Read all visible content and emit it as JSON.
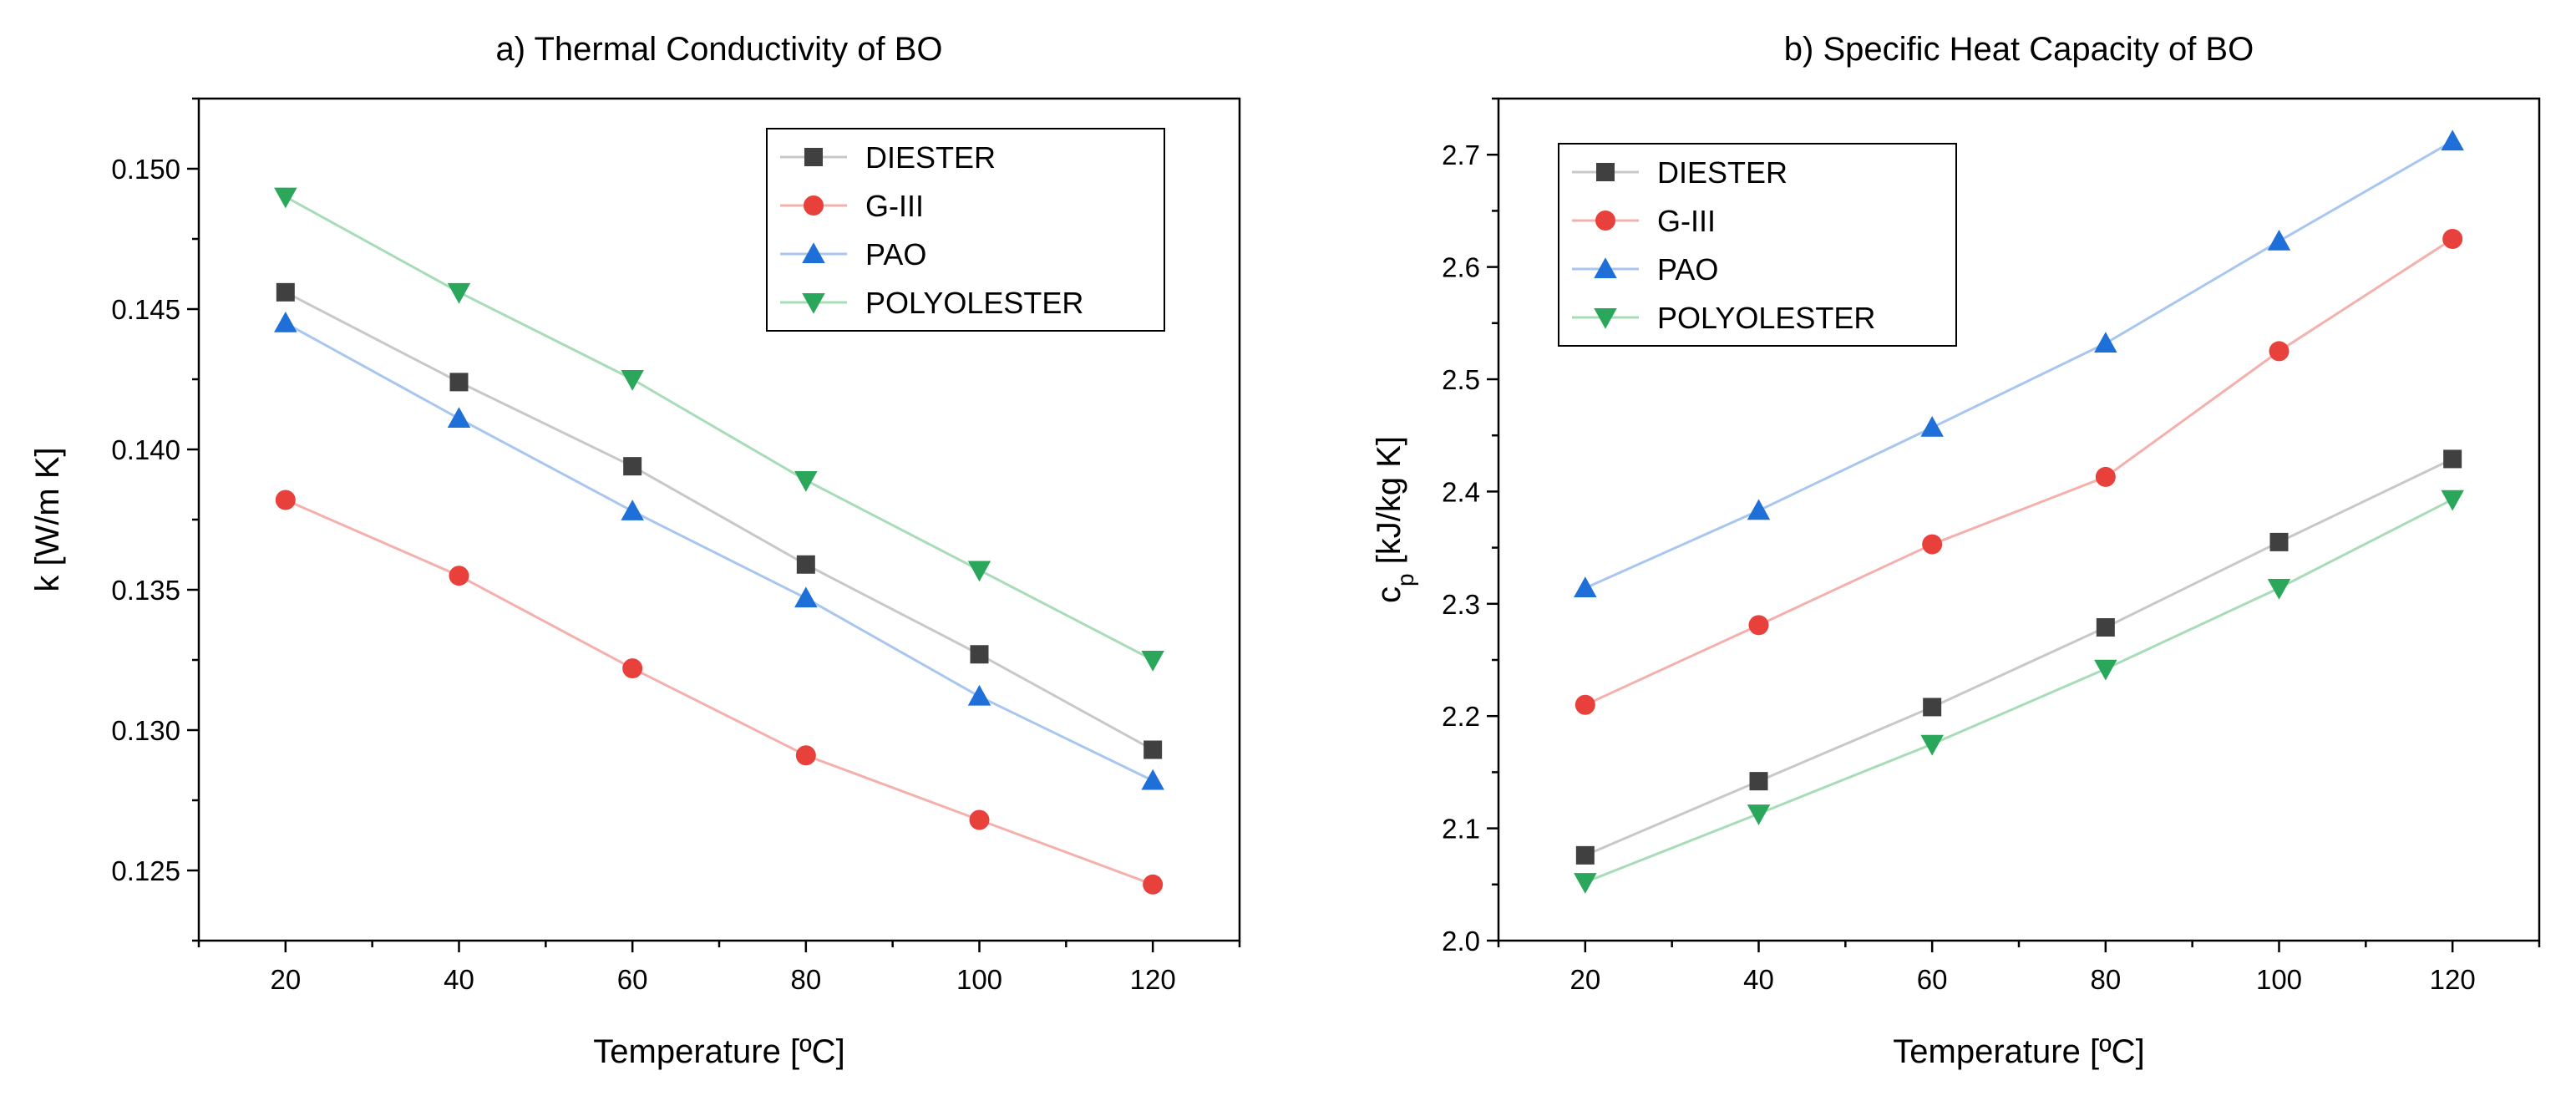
{
  "chart_data": [
    {
      "type": "line",
      "title": "a) Thermal Conductivity of BO",
      "xlabel": "Temperature [ºC]",
      "ylabel": "k [W/m K]",
      "xlim": [
        10,
        130
      ],
      "ylim": [
        0.1225,
        0.1525
      ],
      "xticks": [
        20,
        40,
        60,
        80,
        100,
        120
      ],
      "xtick_labels": [
        "20",
        "40",
        "60",
        "80",
        "100",
        "120"
      ],
      "yticks": [
        0.125,
        0.13,
        0.135,
        0.14,
        0.145,
        0.15
      ],
      "ytick_labels": [
        "0.125",
        "0.130",
        "0.135",
        "0.140",
        "0.145",
        "0.150"
      ],
      "legend_position": "top-right",
      "x": [
        20,
        40,
        60,
        80,
        100,
        120
      ],
      "series": [
        {
          "name": "DIESTER",
          "marker": "square",
          "color": "#404040",
          "line_color": "#c8c8c8",
          "values": [
            0.1456,
            0.1424,
            0.1394,
            0.1359,
            0.1327,
            0.1293
          ]
        },
        {
          "name": "G-III",
          "marker": "circle",
          "color": "#e8403a",
          "line_color": "#f4b0ac",
          "values": [
            0.1382,
            0.1355,
            0.1322,
            0.1291,
            0.1268,
            0.1245
          ]
        },
        {
          "name": "PAO",
          "marker": "triangle-up",
          "color": "#1f6fd8",
          "line_color": "#a8c6f0",
          "values": [
            0.1445,
            0.1411,
            0.1378,
            0.1347,
            0.1312,
            0.1282
          ]
        },
        {
          "name": "POLYOLESTER",
          "marker": "triangle-down",
          "color": "#2aa75a",
          "line_color": "#a8dcb8",
          "values": [
            0.149,
            0.1456,
            0.1425,
            0.1389,
            0.1357,
            0.1325
          ]
        }
      ]
    },
    {
      "type": "line",
      "title": "b) Specific Heat Capacity of BO",
      "xlabel": "Temperature [ºC]",
      "ylabel": "c",
      "ylabel_sub": "p",
      "ylabel_rest": " [kJ/kg K]",
      "xlim": [
        10,
        130
      ],
      "ylim": [
        2.0,
        2.75
      ],
      "xticks": [
        20,
        40,
        60,
        80,
        100,
        120
      ],
      "xtick_labels": [
        "20",
        "40",
        "60",
        "80",
        "100",
        "120"
      ],
      "yticks": [
        2.0,
        2.1,
        2.2,
        2.3,
        2.4,
        2.5,
        2.6,
        2.7
      ],
      "ytick_labels": [
        "2.0",
        "2.1",
        "2.2",
        "2.3",
        "2.4",
        "2.5",
        "2.6",
        "2.7"
      ],
      "legend_position": "top-left",
      "x": [
        20,
        40,
        60,
        80,
        100,
        120
      ],
      "series": [
        {
          "name": "DIESTER",
          "marker": "square",
          "color": "#404040",
          "line_color": "#c8c8c8",
          "values": [
            2.076,
            2.142,
            2.208,
            2.279,
            2.355,
            2.429
          ]
        },
        {
          "name": "G-III",
          "marker": "circle",
          "color": "#e8403a",
          "line_color": "#f4b0ac",
          "values": [
            2.21,
            2.281,
            2.353,
            2.413,
            2.525,
            2.625
          ]
        },
        {
          "name": "PAO",
          "marker": "triangle-up",
          "color": "#1f6fd8",
          "line_color": "#a8c6f0",
          "values": [
            2.314,
            2.383,
            2.457,
            2.532,
            2.623,
            2.712
          ]
        },
        {
          "name": "POLYOLESTER",
          "marker": "triangle-down",
          "color": "#2aa75a",
          "line_color": "#a8dcb8",
          "values": [
            2.052,
            2.113,
            2.175,
            2.242,
            2.314,
            2.393
          ]
        }
      ]
    }
  ]
}
